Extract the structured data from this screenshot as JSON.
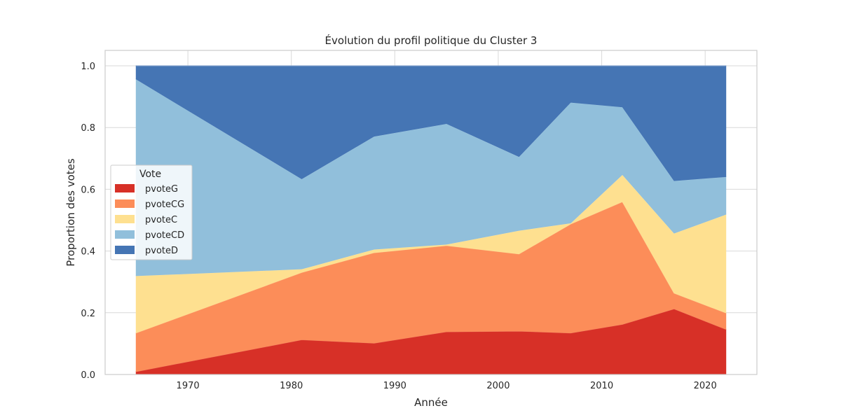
{
  "chart_data": {
    "type": "area",
    "stacked": true,
    "title": "Évolution du profil politique du Cluster 3",
    "xlabel": "Année",
    "ylabel": "Proportion des votes",
    "xlim": [
      1962,
      2025
    ],
    "ylim": [
      0,
      1.05
    ],
    "xticks": [
      1970,
      1980,
      1990,
      2000,
      2010,
      2020
    ],
    "yticks": [
      0.0,
      0.2,
      0.4,
      0.6,
      0.8,
      1.0
    ],
    "ytick_labels": [
      "0.0",
      "0.2",
      "0.4",
      "0.6",
      "0.8",
      "1.0"
    ],
    "grid": true,
    "x": [
      1965,
      1981,
      1988,
      1995,
      2002,
      2007,
      2012,
      2017,
      2022
    ],
    "series": [
      {
        "name": "pvoteG",
        "color": "#d73027",
        "values": [
          0.01,
          0.113,
          0.102,
          0.139,
          0.141,
          0.135,
          0.163,
          0.213,
          0.147
        ]
      },
      {
        "name": "pvoteCG",
        "color": "#fc8d59",
        "values": [
          0.125,
          0.218,
          0.293,
          0.279,
          0.25,
          0.353,
          0.397,
          0.051,
          0.053
        ]
      },
      {
        "name": "pvoteC",
        "color": "#fee090",
        "values": [
          0.185,
          0.011,
          0.011,
          0.004,
          0.076,
          0.003,
          0.088,
          0.194,
          0.319
        ]
      },
      {
        "name": "pvoteCD",
        "color": "#91bfdb",
        "values": [
          0.637,
          0.292,
          0.366,
          0.391,
          0.239,
          0.391,
          0.219,
          0.17,
          0.122
        ]
      },
      {
        "name": "pvoteD",
        "color": "#4575b4",
        "values": [
          0.043,
          0.366,
          0.228,
          0.187,
          0.294,
          0.118,
          0.133,
          0.372,
          0.359
        ]
      }
    ],
    "legend": {
      "title": "Vote",
      "position": "center-left"
    }
  }
}
